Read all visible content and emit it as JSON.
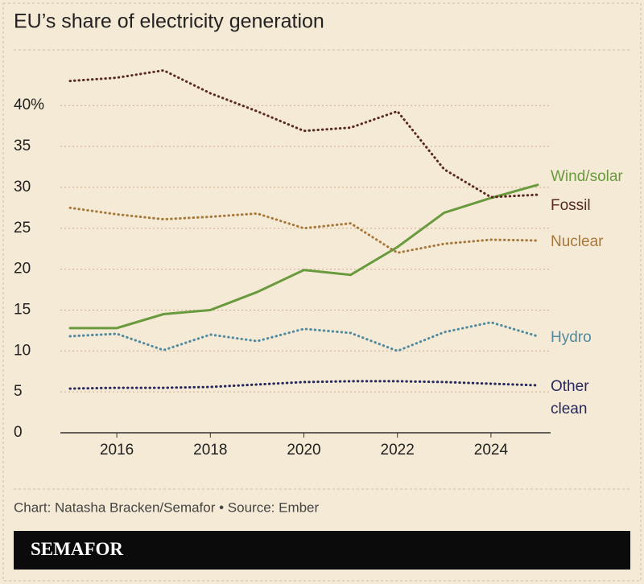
{
  "chart_data": {
    "type": "line",
    "title": "EU’s share of electricity generation",
    "x": [
      2015,
      2016,
      2017,
      2018,
      2019,
      2020,
      2021,
      2022,
      2023,
      2024,
      2025
    ],
    "xlim": [
      2015,
      2025
    ],
    "xticks": [
      2016,
      2018,
      2020,
      2022,
      2024
    ],
    "ylim": [
      0,
      45
    ],
    "yticks": [
      0,
      5,
      10,
      15,
      20,
      25,
      30,
      35,
      {
        "value": 40,
        "label": "40%"
      }
    ],
    "grid": true,
    "series": [
      {
        "name": "Wind/solar",
        "color": "#6a9a3e",
        "line_style": "solid",
        "values": [
          12.8,
          12.8,
          14.5,
          15.0,
          17.2,
          19.9,
          19.3,
          22.7,
          26.9,
          28.7,
          30.3
        ]
      },
      {
        "name": "Fossil",
        "color": "#5a2a1e",
        "line_style": "dotted",
        "values": [
          43.0,
          43.4,
          44.3,
          41.5,
          39.3,
          36.9,
          37.3,
          39.3,
          32.2,
          28.8,
          29.1
        ]
      },
      {
        "name": "Nuclear",
        "color": "#a8773a",
        "line_style": "dotted",
        "values": [
          27.5,
          26.7,
          26.1,
          26.4,
          26.8,
          25.0,
          25.6,
          22.0,
          23.1,
          23.6,
          23.5
        ]
      },
      {
        "name": "Hydro",
        "color": "#4f8aa0",
        "line_style": "dotted",
        "values": [
          11.8,
          12.1,
          10.1,
          12.0,
          11.2,
          12.7,
          12.2,
          10.0,
          12.3,
          13.5,
          11.8
        ]
      },
      {
        "name": "Other clean",
        "color": "#27285e",
        "line_style": "dotted",
        "values": [
          5.4,
          5.5,
          5.5,
          5.6,
          5.9,
          6.2,
          6.3,
          6.3,
          6.2,
          6.0,
          5.8
        ]
      }
    ],
    "label_y": [
      220,
      256,
      301,
      420,
      481
    ],
    "source": "Chart: Natasha Bracken/Semafor • Source: Ember",
    "brand": "SEMAFOR"
  }
}
